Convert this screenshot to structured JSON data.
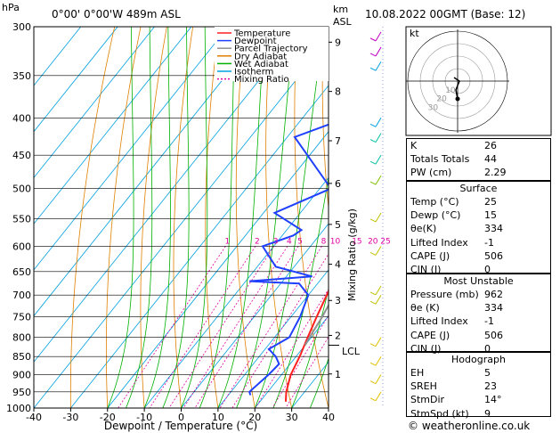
{
  "header": {
    "location": "0°00' 0°00'W 489m ASL",
    "datetime": "10.08.2022 00GMT (Base: 12)",
    "pressure_unit": "hPa",
    "km_label": "km",
    "asl_label": "ASL",
    "mixing_ratio_label": "Mixing Ratio (g/kg)",
    "lcl_label": "LCL"
  },
  "footer": {
    "credit": "© weatheronline.co.uk"
  },
  "legend": [
    {
      "label": "Temperature",
      "color": "#ff2020"
    },
    {
      "label": "Dewpoint",
      "color": "#2040ff"
    },
    {
      "label": "Parcel Trajectory",
      "color": "#909090"
    },
    {
      "label": "Dry Adiabat",
      "color": "#e08000"
    },
    {
      "label": "Wet Adiabat",
      "color": "#00b000"
    },
    {
      "label": "Isotherm",
      "color": "#00a0e0"
    },
    {
      "label": "Mixing Ratio",
      "color": "#e000a0"
    }
  ],
  "chart_data": {
    "type": "line",
    "xlabel": "Dewpoint / Temperature (°C)",
    "xlim": [
      -40,
      40
    ],
    "x_ticks": [
      -40,
      -30,
      -20,
      -10,
      0,
      10,
      20,
      30,
      40
    ],
    "ylim": [
      300,
      1000
    ],
    "pressure_levels": [
      300,
      350,
      400,
      450,
      500,
      550,
      600,
      650,
      700,
      750,
      800,
      850,
      900,
      950,
      1000
    ],
    "km_ticks": [
      {
        "label": "9",
        "p": 315
      },
      {
        "label": "8",
        "p": 368
      },
      {
        "label": "7",
        "p": 430
      },
      {
        "label": "6",
        "p": 492
      },
      {
        "label": "5",
        "p": 560
      },
      {
        "label": "4",
        "p": 635
      },
      {
        "label": "3",
        "p": 712
      },
      {
        "label": "2",
        "p": 795
      },
      {
        "label": "1",
        "p": 898
      }
    ],
    "lcl_pressure": 820,
    "mixing_ratio_labels": [
      "1",
      "2",
      "3",
      "4",
      "5",
      "8",
      "10",
      "15",
      "20",
      "25"
    ],
    "series": [
      {
        "name": "Temperature",
        "color": "#ff2020",
        "points": [
          [
            300,
            -5
          ],
          [
            350,
            -3
          ],
          [
            400,
            1
          ],
          [
            450,
            3
          ],
          [
            500,
            6
          ],
          [
            550,
            8.5
          ],
          [
            600,
            10.5
          ],
          [
            650,
            13
          ],
          [
            700,
            15
          ],
          [
            750,
            17
          ],
          [
            800,
            19
          ],
          [
            850,
            21
          ],
          [
            900,
            22.5
          ],
          [
            950,
            25
          ],
          [
            980,
            27
          ]
        ]
      },
      {
        "name": "Dewpoint",
        "color": "#2040ff",
        "points": [
          [
            300,
            -15
          ],
          [
            320,
            -8
          ],
          [
            350,
            -5
          ],
          [
            400,
            -18
          ],
          [
            425,
            -28
          ],
          [
            500,
            -7
          ],
          [
            540,
            -17
          ],
          [
            570,
            -6
          ],
          [
            580,
            -7
          ],
          [
            600,
            -13
          ],
          [
            640,
            -5
          ],
          [
            660,
            7
          ],
          [
            670,
            -9
          ],
          [
            675,
            5
          ],
          [
            700,
            10
          ],
          [
            750,
            12.5
          ],
          [
            800,
            14
          ],
          [
            830,
            11
          ],
          [
            850,
            14.5
          ],
          [
            870,
            17
          ],
          [
            900,
            16.5
          ],
          [
            950,
            15
          ],
          [
            960,
            16
          ]
        ]
      },
      {
        "name": "Parcel Trajectory",
        "color": "#909090",
        "points": [
          [
            350,
            -2
          ],
          [
            400,
            0.5
          ],
          [
            450,
            4
          ],
          [
            500,
            7
          ],
          [
            550,
            10
          ],
          [
            600,
            13
          ],
          [
            650,
            15.5
          ],
          [
            700,
            17
          ],
          [
            750,
            18.5
          ],
          [
            800,
            19.5
          ],
          [
            820,
            20
          ]
        ]
      }
    ]
  },
  "hodograph": {
    "label": "kt",
    "ring_labels": [
      "10",
      "20",
      "30"
    ]
  },
  "indices": [
    {
      "label": "K",
      "value": "26"
    },
    {
      "label": "Totals Totals",
      "value": "44"
    },
    {
      "label": "PW (cm)",
      "value": "2.29"
    }
  ],
  "surface": {
    "title": "Surface",
    "rows": [
      {
        "label": "Temp (°C)",
        "value": "25"
      },
      {
        "label": "Dewp (°C)",
        "value": "15"
      },
      {
        "label": "θe(K)",
        "value": "334"
      },
      {
        "label": "Lifted Index",
        "value": "-1"
      },
      {
        "label": "CAPE (J)",
        "value": "506"
      },
      {
        "label": "CIN (J)",
        "value": "0"
      }
    ]
  },
  "most_unstable": {
    "title": "Most Unstable",
    "rows": [
      {
        "label": "Pressure (mb)",
        "value": "962"
      },
      {
        "label": "θe (K)",
        "value": "334"
      },
      {
        "label": "Lifted Index",
        "value": "-1"
      },
      {
        "label": "CAPE (J)",
        "value": "506"
      },
      {
        "label": "CIN (J)",
        "value": "0"
      }
    ]
  },
  "hodo_params": {
    "title": "Hodograph",
    "rows": [
      {
        "label": "EH",
        "value": "5"
      },
      {
        "label": "SREH",
        "value": "23"
      },
      {
        "label": "StmDir",
        "value": "14°"
      },
      {
        "label": "StmSpd (kt)",
        "value": "9"
      }
    ]
  }
}
